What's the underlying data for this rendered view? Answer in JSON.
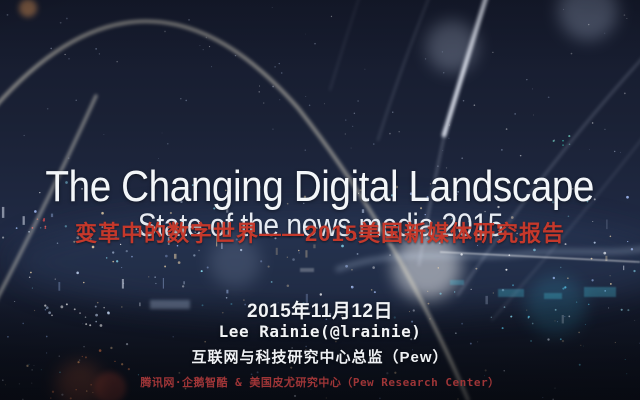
{
  "slide": {
    "title": "The Changing Digital Landscape",
    "subtitle": "State of the news media 2015",
    "headline_cn": "变革中的数字世界——2015美国新媒体研究报告",
    "date": "2015年11月12日",
    "speaker": "Lee Rainie(@lrainie)",
    "speaker_role": "互联网与科技研究中心总监（Pew）",
    "footer": "腾讯网·企鹅智酷 & 美国皮尤研究中心（Pew Research Center）",
    "colors": {
      "headline_red": "#c5382b",
      "footer_red": "#9e3537",
      "title_white": "#f3f6f9",
      "background_navy": "#1a2135"
    }
  }
}
